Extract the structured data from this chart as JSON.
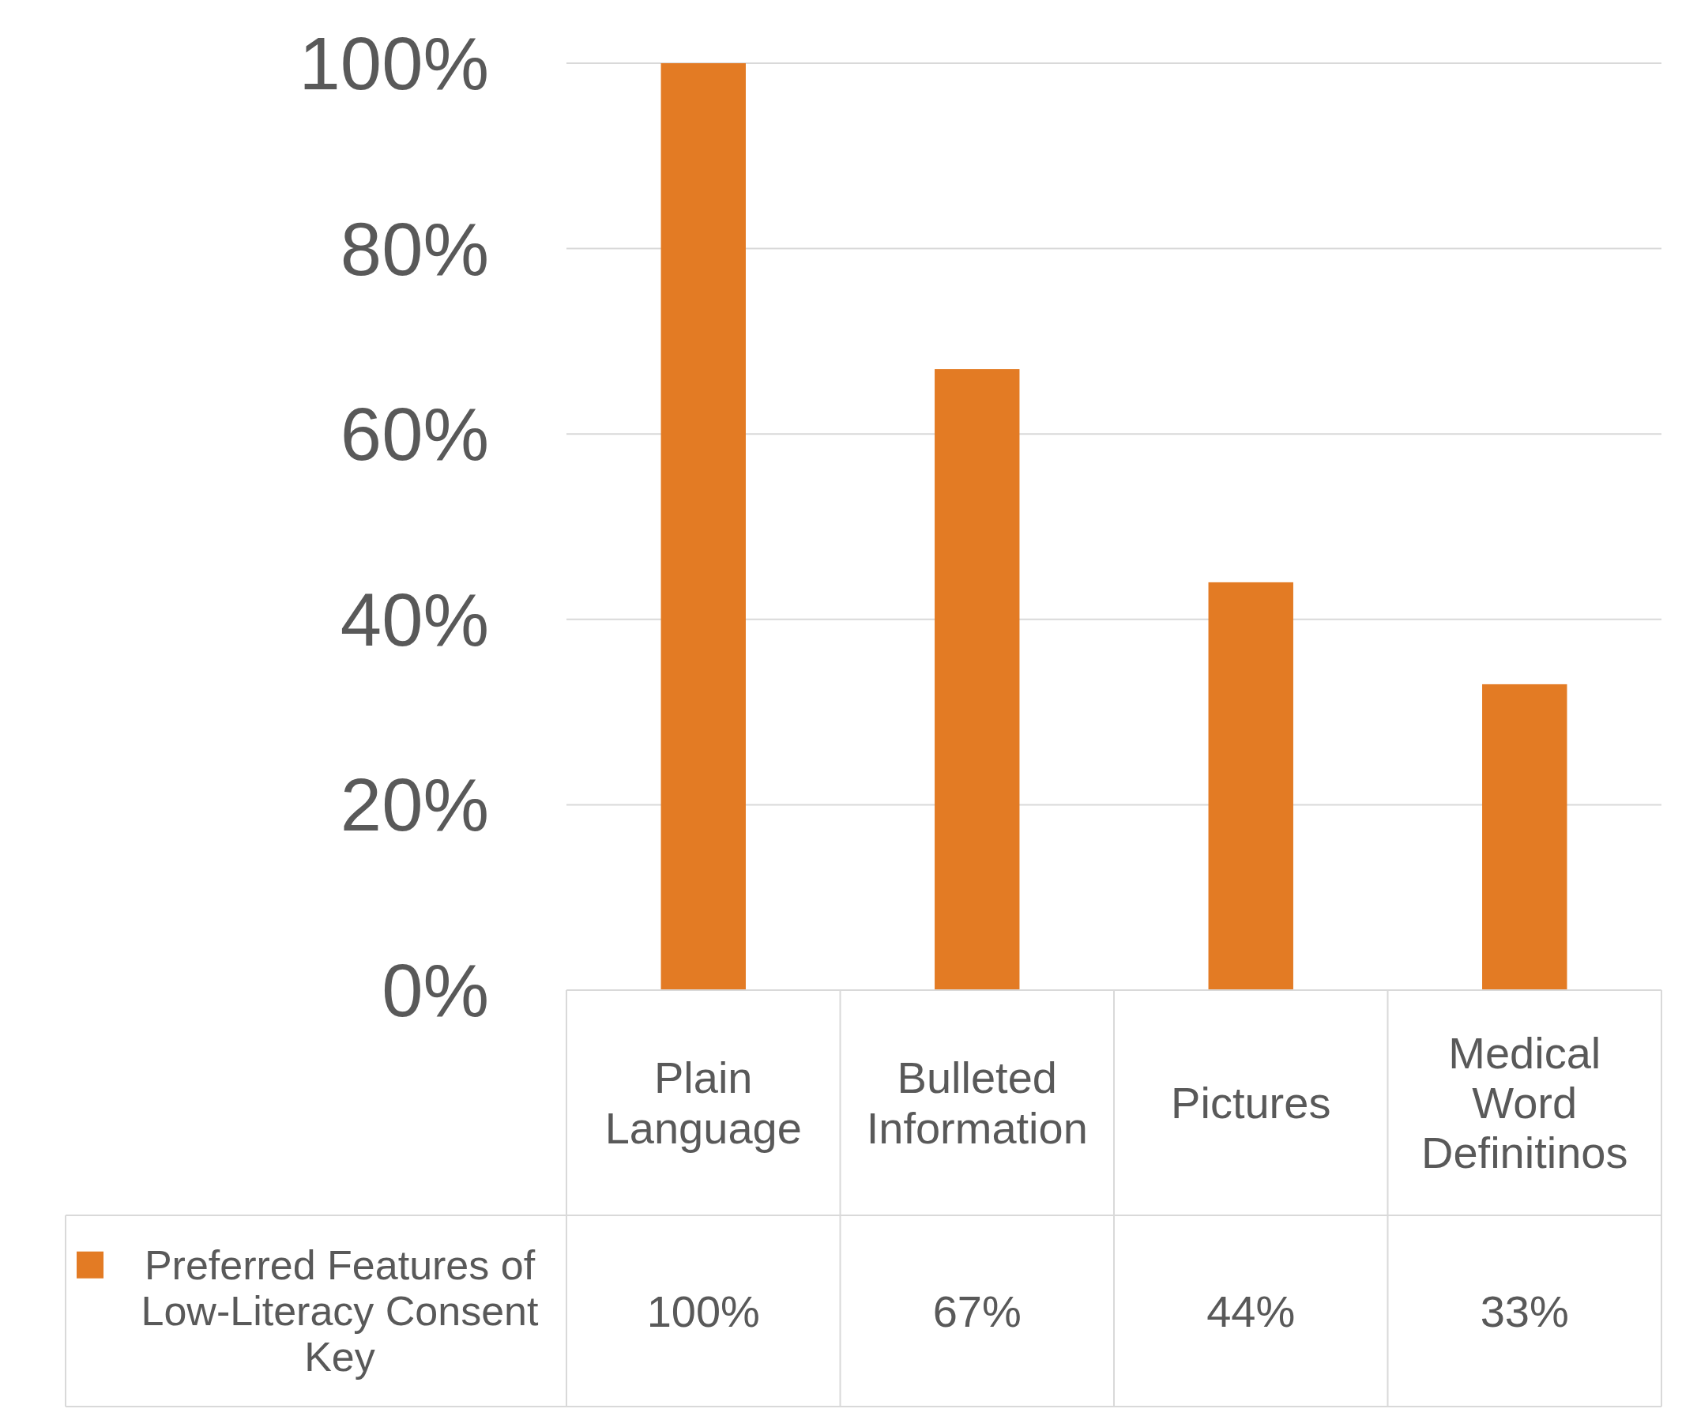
{
  "chart_data": {
    "type": "bar",
    "categories": [
      "Plain Language",
      "Bulleted Information",
      "Pictures",
      "Medical Word Definitinos"
    ],
    "series": [
      {
        "name": "Preferred Features of Low-Literacy Consent Key",
        "color": "#e37b24",
        "values": [
          100,
          67,
          44,
          33
        ]
      }
    ],
    "ylim": [
      0,
      100
    ],
    "yticks": [
      {
        "value": 0,
        "label": "0%"
      },
      {
        "value": 20,
        "label": "20%"
      },
      {
        "value": 40,
        "label": "40%"
      },
      {
        "value": 60,
        "label": "60%"
      },
      {
        "value": 80,
        "label": "80%"
      },
      {
        "value": 100,
        "label": "100%"
      }
    ],
    "grid": "y",
    "value_labels": [
      "100%",
      "67%",
      "44%",
      "33%"
    ],
    "legend": "bottom"
  }
}
